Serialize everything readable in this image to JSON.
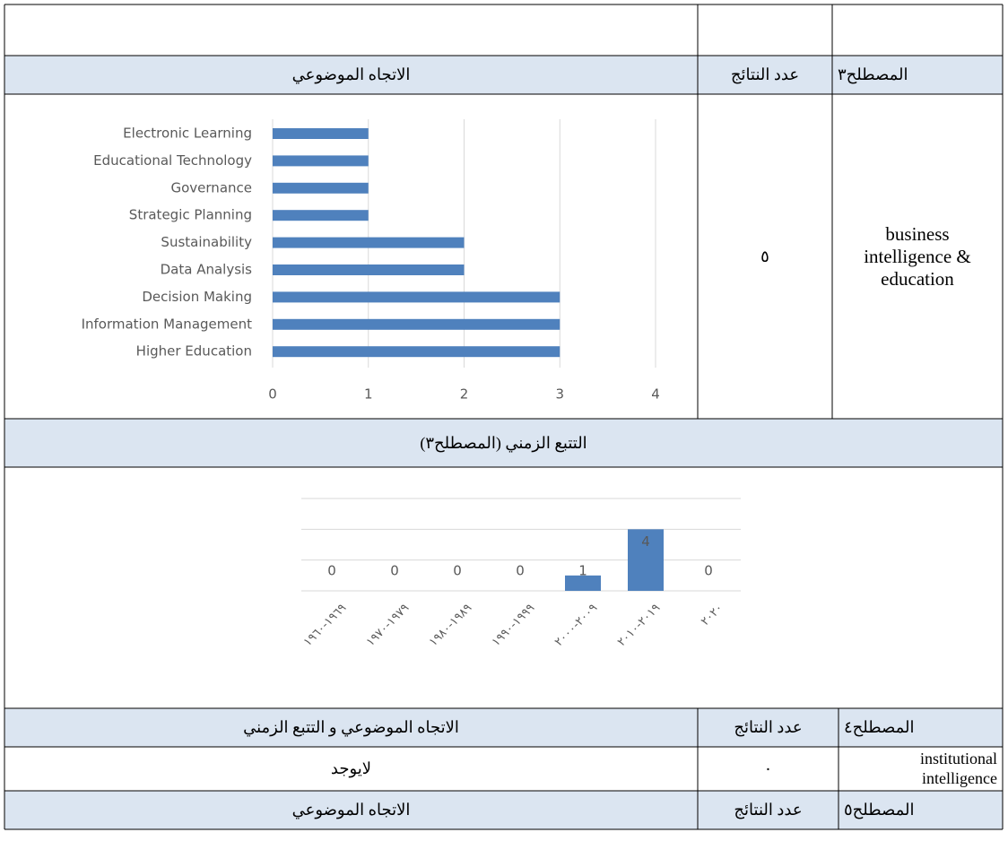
{
  "section1": {
    "headers": [
      "المصطلح٣",
      "عدد النتائج",
      "الاتجاه الموضوعي"
    ],
    "count": "٥",
    "term": "business intelligence & education"
  },
  "section2": {
    "title": "التتبع الزمني (المصطلح٣)"
  },
  "section3": {
    "headers": [
      "المصطلح٤",
      "عدد النتائج",
      "الاتجاه الموضوعي و التتبع الزمني"
    ],
    "count": "٠",
    "term": "institutional intelligence",
    "topic": "لايوجد"
  },
  "section4": {
    "headers": [
      "المصطلح٥",
      "عدد النتائج",
      "الاتجاه الموضوعي"
    ]
  },
  "chart_data": [
    {
      "type": "bar",
      "orientation": "horizontal",
      "color": "#4f81bd",
      "grid": true,
      "categories": [
        "Electronic Learning",
        "Educational Technology",
        "Governance",
        "Strategic Planning",
        "Sustainability",
        "Data Analysis",
        "Decision Making",
        "Information Management",
        "Higher Education"
      ],
      "values": [
        1,
        1,
        1,
        1,
        2,
        2,
        3,
        3,
        3
      ],
      "xlim": [
        0,
        4
      ],
      "xticks": [
        0,
        1,
        2,
        3,
        4
      ]
    },
    {
      "type": "bar",
      "orientation": "vertical",
      "color": "#4f81bd",
      "grid": true,
      "categories": [
        "١٩٦٩-١٩٦٠",
        "١٩٧٩-١٩٧٠",
        "١٩٨٩-١٩٨٠",
        "١٩٩٩-١٩٩٠",
        "٢٠٠٩-٢٠٠٠",
        "٢٠١٩-٢٠١٠",
        "٢٠٢٠"
      ],
      "values": [
        0,
        0,
        0,
        0,
        1,
        4,
        0
      ],
      "ylim": [
        0,
        6
      ],
      "yticks": [
        0,
        2,
        4,
        6
      ]
    }
  ]
}
